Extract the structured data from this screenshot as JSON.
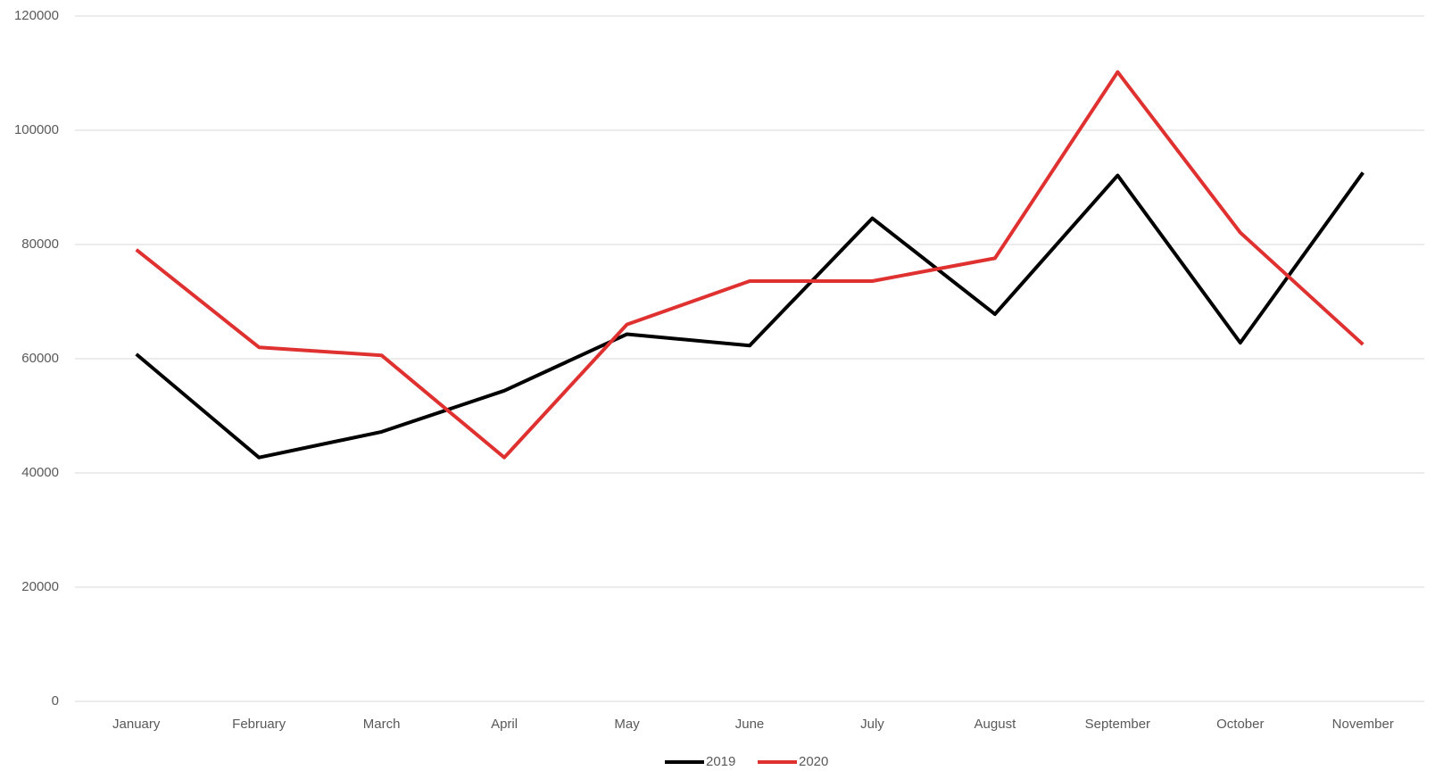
{
  "chart_data": {
    "type": "line",
    "categories": [
      "January",
      "February",
      "March",
      "April",
      "May",
      "June",
      "July",
      "August",
      "September",
      "October",
      "November"
    ],
    "series": [
      {
        "name": "2019",
        "color": "#000000",
        "values": [
          60800,
          42700,
          47200,
          54400,
          64300,
          62300,
          84600,
          67800,
          92100,
          62800,
          92600
        ]
      },
      {
        "name": "2020",
        "color": "#e03131",
        "values": [
          79100,
          62000,
          60600,
          42700,
          66000,
          73600,
          73600,
          77600,
          110200,
          82100,
          62500
        ]
      }
    ],
    "ylim": [
      0,
      120000
    ],
    "yticks": [
      0,
      20000,
      40000,
      60000,
      80000,
      100000,
      120000
    ],
    "grid": true,
    "legend": "bottom"
  }
}
